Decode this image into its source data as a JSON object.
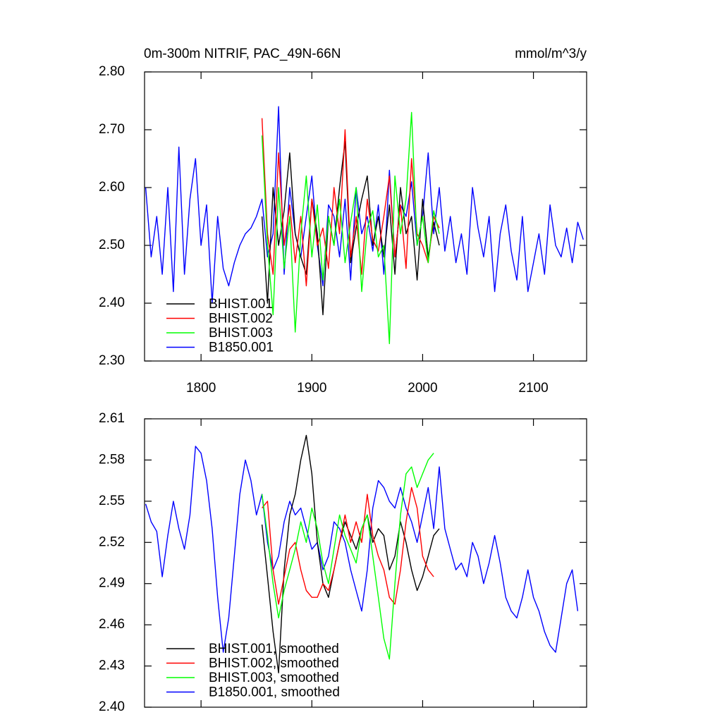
{
  "chart_data": [
    {
      "type": "line",
      "title": "0m-300m NITRIF, PAC_49N-66N",
      "units": "mmol/m^3/y",
      "xlim": [
        1749,
        2148
      ],
      "xticks": [
        1800,
        1900,
        2000,
        2100
      ],
      "ylim": [
        2.3,
        2.8
      ],
      "yticks": [
        {
          "value": 2.3,
          "label": "2.30"
        },
        {
          "value": 2.4,
          "label": "2.40"
        },
        {
          "value": 2.5,
          "label": "2.50"
        },
        {
          "value": 2.6,
          "label": "2.60"
        },
        {
          "value": 2.7,
          "label": "2.70"
        },
        {
          "value": 2.8,
          "label": "2.80"
        }
      ],
      "legend": "lower left",
      "series": [
        {
          "name": "B1850.001",
          "color": "#0000ff",
          "x": [
            1750,
            1755,
            1760,
            1765,
            1770,
            1775,
            1780,
            1785,
            1790,
            1795,
            1800,
            1805,
            1810,
            1815,
            1820,
            1825,
            1830,
            1835,
            1840,
            1845,
            1850,
            1855,
            1860,
            1865,
            1870,
            1875,
            1880,
            1885,
            1890,
            1895,
            1900,
            1905,
            1910,
            1915,
            1920,
            1925,
            1930,
            1935,
            1940,
            1945,
            1950,
            1955,
            1960,
            1965,
            1970,
            1975,
            1980,
            1985,
            1990,
            1995,
            2000,
            2005,
            2010,
            2015,
            2020,
            2025,
            2030,
            2035,
            2040,
            2045,
            2050,
            2055,
            2060,
            2065,
            2070,
            2075,
            2080,
            2085,
            2090,
            2095,
            2100,
            2105,
            2110,
            2115,
            2120,
            2125,
            2130,
            2135,
            2140,
            2145
          ],
          "values": [
            2.6,
            2.48,
            2.55,
            2.45,
            2.6,
            2.42,
            2.67,
            2.45,
            2.58,
            2.65,
            2.5,
            2.57,
            2.4,
            2.55,
            2.46,
            2.43,
            2.47,
            2.5,
            2.52,
            2.53,
            2.55,
            2.58,
            2.48,
            2.52,
            2.74,
            2.45,
            2.6,
            2.52,
            2.48,
            2.55,
            2.62,
            2.5,
            2.43,
            2.57,
            2.55,
            2.48,
            2.58,
            2.44,
            2.6,
            2.52,
            2.55,
            2.49,
            2.57,
            2.45,
            2.63,
            2.48,
            2.57,
            2.55,
            2.61,
            2.5,
            2.55,
            2.66,
            2.52,
            2.6,
            2.49,
            2.55,
            2.47,
            2.52,
            2.45,
            2.6,
            2.53,
            2.48,
            2.55,
            2.42,
            2.52,
            2.57,
            2.49,
            2.44,
            2.55,
            2.42,
            2.47,
            2.52,
            2.45,
            2.57,
            2.5,
            2.48,
            2.53,
            2.47,
            2.54,
            2.51
          ]
        },
        {
          "name": "BHIST.001",
          "color": "#000000",
          "x": [
            1855,
            1860,
            1865,
            1870,
            1875,
            1880,
            1885,
            1890,
            1895,
            1900,
            1905,
            1910,
            1915,
            1920,
            1925,
            1930,
            1935,
            1940,
            1945,
            1950,
            1955,
            1960,
            1965,
            1970,
            1975,
            1980,
            1985,
            1990,
            1995,
            2000,
            2005,
            2010,
            2015
          ],
          "values": [
            2.55,
            2.4,
            2.6,
            2.5,
            2.56,
            2.66,
            2.52,
            2.48,
            2.45,
            2.58,
            2.52,
            2.38,
            2.55,
            2.5,
            2.6,
            2.68,
            2.47,
            2.53,
            2.58,
            2.62,
            2.5,
            2.55,
            2.48,
            2.57,
            2.45,
            2.6,
            2.52,
            2.55,
            2.44,
            2.58,
            2.48,
            2.54,
            2.5
          ]
        },
        {
          "name": "BHIST.002",
          "color": "#ff0000",
          "x": [
            1855,
            1860,
            1865,
            1870,
            1875,
            1880,
            1885,
            1890,
            1895,
            1900,
            1905,
            1910,
            1915,
            1920,
            1925,
            1930,
            1935,
            1940,
            1945,
            1950,
            1955,
            1960,
            1965,
            1970,
            1975,
            1980,
            1985,
            1990,
            1995,
            2000,
            2005,
            2010,
            2015
          ],
          "values": [
            2.72,
            2.52,
            2.45,
            2.66,
            2.5,
            2.57,
            2.47,
            2.55,
            2.43,
            2.58,
            2.5,
            2.53,
            2.46,
            2.6,
            2.52,
            2.7,
            2.48,
            2.55,
            2.45,
            2.58,
            2.51,
            2.49,
            2.55,
            2.62,
            2.48,
            2.57,
            2.46,
            2.65,
            2.52,
            2.5,
            2.47,
            2.55,
            2.53
          ]
        },
        {
          "name": "BHIST.003",
          "color": "#00ff00",
          "x": [
            1855,
            1860,
            1865,
            1870,
            1875,
            1880,
            1885,
            1890,
            1895,
            1900,
            1905,
            1910,
            1915,
            1920,
            1925,
            1930,
            1935,
            1940,
            1945,
            1950,
            1955,
            1960,
            1965,
            1970,
            1975,
            1980,
            1985,
            1990,
            1995,
            2000,
            2005,
            2010,
            2015
          ],
          "values": [
            2.69,
            2.5,
            2.38,
            2.6,
            2.46,
            2.55,
            2.35,
            2.52,
            2.62,
            2.48,
            2.57,
            2.44,
            2.55,
            2.5,
            2.58,
            2.47,
            2.54,
            2.6,
            2.42,
            2.53,
            2.56,
            2.48,
            2.5,
            2.33,
            2.62,
            2.52,
            2.58,
            2.73,
            2.5,
            2.55,
            2.47,
            2.56,
            2.52
          ]
        }
      ],
      "legend_order": [
        1,
        2,
        3,
        0
      ]
    },
    {
      "type": "line",
      "xlim": [
        1749,
        2148
      ],
      "ylim": [
        2.4,
        2.61
      ],
      "yticks": [
        {
          "value": 2.4,
          "label": "2.40"
        },
        2.43,
        2.46,
        2.49,
        2.52,
        2.55,
        2.58,
        2.61
      ],
      "legend": "lower left",
      "series": [
        {
          "name": "B1850.001, smoothed",
          "color": "#0000ff",
          "x": [
            1750,
            1755,
            1760,
            1765,
            1770,
            1775,
            1780,
            1785,
            1790,
            1795,
            1800,
            1805,
            1810,
            1815,
            1820,
            1825,
            1830,
            1835,
            1840,
            1845,
            1850,
            1855,
            1860,
            1865,
            1870,
            1875,
            1880,
            1885,
            1890,
            1895,
            1900,
            1905,
            1910,
            1915,
            1920,
            1925,
            1930,
            1935,
            1940,
            1945,
            1950,
            1955,
            1960,
            1965,
            1970,
            1975,
            1980,
            1985,
            1990,
            1995,
            2000,
            2005,
            2010,
            2015,
            2020,
            2025,
            2030,
            2035,
            2040,
            2045,
            2050,
            2055,
            2060,
            2065,
            2070,
            2075,
            2080,
            2085,
            2090,
            2095,
            2100,
            2105,
            2110,
            2115,
            2120,
            2125,
            2130,
            2135,
            2140
          ],
          "values": [
            2.548,
            2.535,
            2.528,
            2.495,
            2.525,
            2.55,
            2.53,
            2.515,
            2.54,
            2.59,
            2.585,
            2.565,
            2.53,
            2.48,
            2.44,
            2.465,
            2.51,
            2.555,
            2.58,
            2.565,
            2.54,
            2.555,
            2.52,
            2.5,
            2.51,
            2.535,
            2.55,
            2.54,
            2.545,
            2.53,
            2.515,
            2.52,
            2.5,
            2.51,
            2.535,
            2.53,
            2.52,
            2.5,
            2.485,
            2.47,
            2.5,
            2.545,
            2.565,
            2.56,
            2.55,
            2.545,
            2.56,
            2.545,
            2.535,
            2.52,
            2.54,
            2.56,
            2.53,
            2.575,
            2.53,
            2.515,
            2.5,
            2.505,
            2.495,
            2.52,
            2.51,
            2.49,
            2.505,
            2.525,
            2.505,
            2.48,
            2.47,
            2.465,
            2.48,
            2.5,
            2.48,
            2.47,
            2.455,
            2.445,
            2.44,
            2.465,
            2.49,
            2.5,
            2.47
          ]
        },
        {
          "name": "BHIST.001, smoothed",
          "color": "#000000",
          "x": [
            1855,
            1860,
            1865,
            1870,
            1875,
            1880,
            1885,
            1890,
            1895,
            1900,
            1905,
            1910,
            1915,
            1920,
            1925,
            1930,
            1935,
            1940,
            1945,
            1950,
            1955,
            1960,
            1965,
            1970,
            1975,
            1980,
            1985,
            1990,
            1995,
            2000,
            2005,
            2010,
            2015
          ],
          "values": [
            2.533,
            2.495,
            2.455,
            2.425,
            2.5,
            2.54,
            2.555,
            2.58,
            2.598,
            2.57,
            2.52,
            2.49,
            2.48,
            2.5,
            2.52,
            2.535,
            2.525,
            2.515,
            2.53,
            2.54,
            2.52,
            2.53,
            2.525,
            2.5,
            2.51,
            2.535,
            2.52,
            2.5,
            2.485,
            2.495,
            2.51,
            2.525,
            2.53
          ]
        },
        {
          "name": "BHIST.002, smoothed",
          "color": "#ff0000",
          "x": [
            1855,
            1860,
            1865,
            1870,
            1875,
            1880,
            1885,
            1890,
            1895,
            1900,
            1905,
            1910,
            1915,
            1920,
            1925,
            1930,
            1935,
            1940,
            1945,
            1950,
            1955,
            1960,
            1965,
            1970,
            1975,
            1980,
            1985,
            1990,
            1995,
            2000,
            2005,
            2010
          ],
          "values": [
            2.545,
            2.55,
            2.5,
            2.475,
            2.495,
            2.515,
            2.52,
            2.5,
            2.485,
            2.48,
            2.48,
            2.49,
            2.485,
            2.5,
            2.52,
            2.54,
            2.52,
            2.535,
            2.52,
            2.555,
            2.525,
            2.51,
            2.5,
            2.48,
            2.475,
            2.5,
            2.535,
            2.56,
            2.545,
            2.51,
            2.5,
            2.495
          ]
        },
        {
          "name": "BHIST.003, smoothed",
          "color": "#00ff00",
          "x": [
            1855,
            1860,
            1865,
            1870,
            1875,
            1880,
            1885,
            1890,
            1895,
            1900,
            1905,
            1910,
            1915,
            1920,
            1925,
            1930,
            1935,
            1940,
            1945,
            1950,
            1955,
            1960,
            1965,
            1970,
            1975,
            1980,
            1985,
            1990,
            1995,
            2000,
            2005,
            2010
          ],
          "values": [
            2.555,
            2.525,
            2.49,
            2.465,
            2.485,
            2.5,
            2.515,
            2.535,
            2.52,
            2.545,
            2.53,
            2.505,
            2.49,
            2.515,
            2.54,
            2.525,
            2.515,
            2.505,
            2.53,
            2.54,
            2.51,
            2.48,
            2.45,
            2.435,
            2.49,
            2.54,
            2.57,
            2.575,
            2.56,
            2.57,
            2.58,
            2.585
          ]
        }
      ],
      "legend_order": [
        1,
        2,
        3,
        0
      ]
    }
  ]
}
